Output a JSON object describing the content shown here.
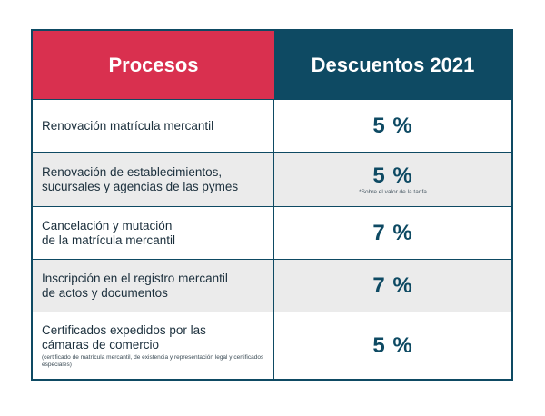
{
  "header": {
    "left": "Procesos",
    "right": "Descuentos 2021"
  },
  "rows": [
    {
      "process_lines": [
        "Renovación matrícula mercantil"
      ],
      "discount": "5 %",
      "note": "",
      "sub": ""
    },
    {
      "process_lines": [
        "Renovación de establecimientos,",
        "sucursales y agencias de las pymes"
      ],
      "discount": "5 %",
      "note": "*Sobre el valor de la tarifa",
      "sub": ""
    },
    {
      "process_lines": [
        "Cancelación y mutación",
        "de la matrícula mercantil"
      ],
      "discount": "7 %",
      "note": "",
      "sub": ""
    },
    {
      "process_lines": [
        "Inscripción en el registro mercantil",
        "de actos y documentos"
      ],
      "discount": "7 %",
      "note": "",
      "sub": ""
    },
    {
      "process_lines": [
        "Certificados expedidos por las",
        "cámaras de comercio"
      ],
      "discount": "5 %",
      "note": "",
      "sub": "(certificado de matrícula mercantil, de existencia y representación legal y certificados especiales)"
    }
  ],
  "colors": {
    "header_left": "#d9304f",
    "header_right": "#0e4a63",
    "shaded_row": "#ebebeb"
  }
}
